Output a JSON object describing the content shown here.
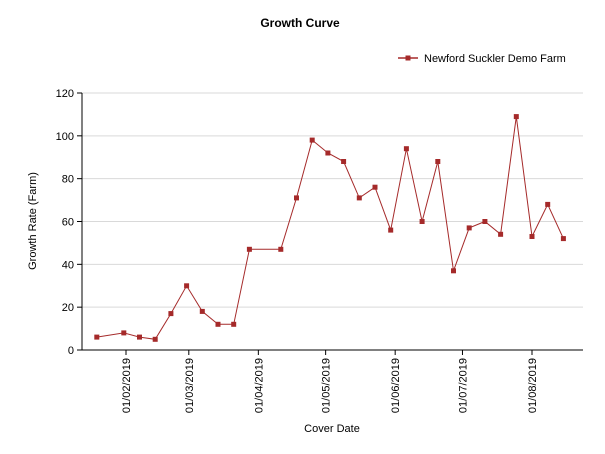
{
  "chart_data": {
    "type": "line",
    "title": "Growth Curve",
    "xlabel": "Cover Date",
    "ylabel": "Growth Rate (Farm)",
    "ylim": [
      0,
      120
    ],
    "yticks": [
      "0",
      "20",
      "40",
      "60",
      "80",
      "100",
      "120"
    ],
    "xtick_labels": [
      "01/02/2019",
      "01/03/2019",
      "01/04/2019",
      "01/05/2019",
      "01/06/2019",
      "01/07/2019",
      "01/08/2019"
    ],
    "grid": "horizontal",
    "legend_position": "top-right",
    "series": [
      {
        "name": "Newford Suckler Demo Farm",
        "color": "#a52a2a",
        "points": [
          {
            "x": "2019-01-19",
            "y": 6
          },
          {
            "x": "2019-01-31",
            "y": 8
          },
          {
            "x": "2019-02-07",
            "y": 6
          },
          {
            "x": "2019-02-14",
            "y": 5
          },
          {
            "x": "2019-02-21",
            "y": 17
          },
          {
            "x": "2019-02-28",
            "y": 30
          },
          {
            "x": "2019-03-07",
            "y": 18
          },
          {
            "x": "2019-03-14",
            "y": 12
          },
          {
            "x": "2019-03-21",
            "y": 12
          },
          {
            "x": "2019-03-28",
            "y": 47
          },
          {
            "x": "2019-04-11",
            "y": 47
          },
          {
            "x": "2019-04-18",
            "y": 71
          },
          {
            "x": "2019-04-25",
            "y": 98
          },
          {
            "x": "2019-05-02",
            "y": 92
          },
          {
            "x": "2019-05-09",
            "y": 88
          },
          {
            "x": "2019-05-16",
            "y": 71
          },
          {
            "x": "2019-05-23",
            "y": 76
          },
          {
            "x": "2019-05-30",
            "y": 56
          },
          {
            "x": "2019-06-06",
            "y": 94
          },
          {
            "x": "2019-06-13",
            "y": 60
          },
          {
            "x": "2019-06-20",
            "y": 88
          },
          {
            "x": "2019-06-27",
            "y": 37
          },
          {
            "x": "2019-07-04",
            "y": 57
          },
          {
            "x": "2019-07-11",
            "y": 60
          },
          {
            "x": "2019-07-18",
            "y": 54
          },
          {
            "x": "2019-07-25",
            "y": 109
          },
          {
            "x": "2019-08-01",
            "y": 53
          },
          {
            "x": "2019-08-08",
            "y": 68
          },
          {
            "x": "2019-08-15",
            "y": 52
          }
        ]
      }
    ]
  }
}
